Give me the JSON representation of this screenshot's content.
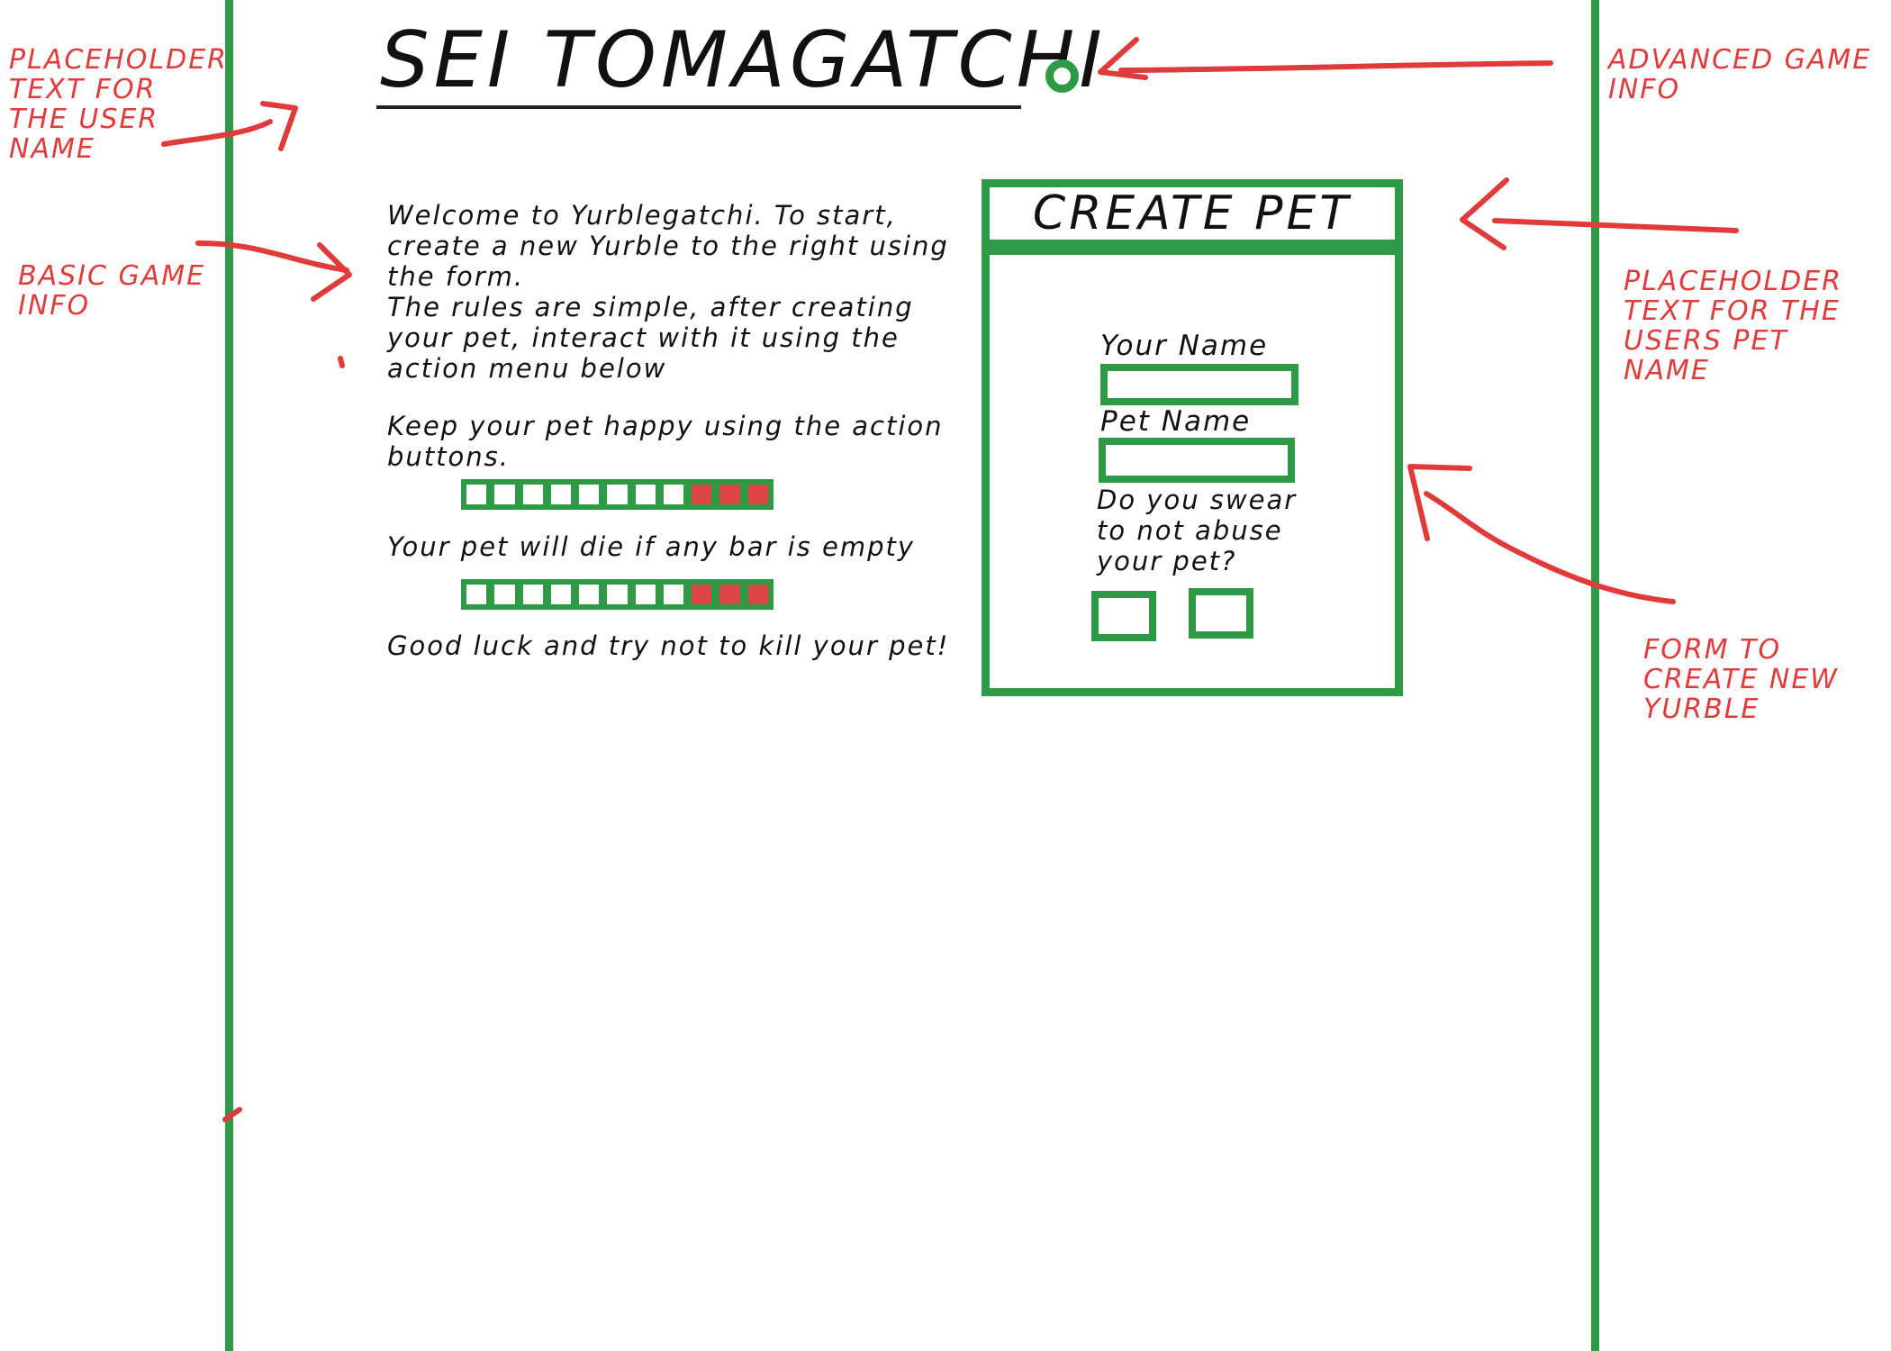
{
  "page": {
    "title": "SEI TOMAGATCHI"
  },
  "basic_info": {
    "intro": "Welcome to Yurblegatchi. To start, create a new Yurble to the right using the form.",
    "rules": "The rules are simple, after creating your pet, interact with it using the action menu below",
    "keep_happy": "Keep your pet happy using the action buttons.",
    "death_warning": "Your pet will die if any bar is empty",
    "closing": "Good luck and try not to kill your pet!",
    "bar_example_1": {
      "filled": 8,
      "empty": 3
    },
    "bar_example_2": {
      "filled": 8,
      "empty": 3
    }
  },
  "create_pet": {
    "heading": "CREATE PET",
    "your_name_label": "Your Name",
    "your_name_value": "",
    "pet_name_label": "Pet Name",
    "pet_name_value": "",
    "swear_question": "Do you swear to not abuse your pet?"
  },
  "annotations": {
    "user_name": "PLACEHOLDER TEXT FOR THE USER NAME",
    "basic_info": "BASIC GAME INFO",
    "advanced_info": "ADVANCED GAME INFO",
    "pet_name": "PLACEHOLDER TEXT FOR THE USERS PET NAME",
    "form": "FORM TO CREATE NEW YURBLE"
  },
  "colors": {
    "accent_green": "#2e9a45",
    "annotation_red": "#e03a3a",
    "empty_bar_red": "#e04545"
  }
}
